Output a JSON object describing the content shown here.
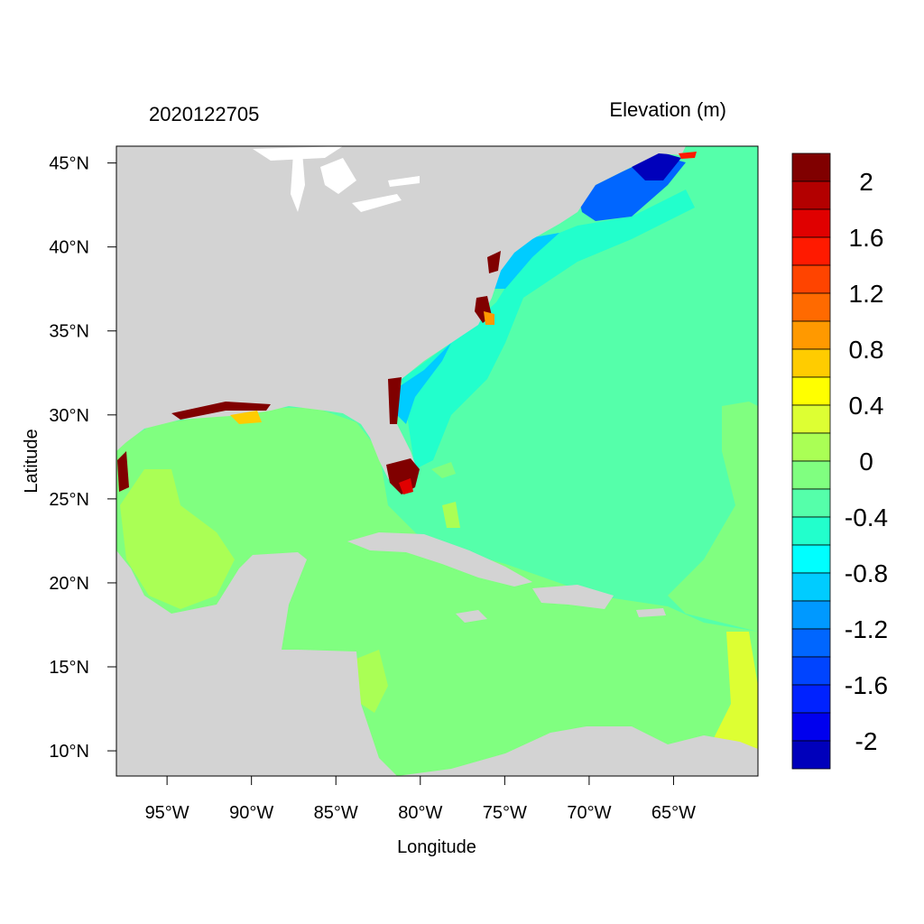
{
  "header": {
    "timestamp": "2020122705",
    "variable_title": "Elevation (m)"
  },
  "axes": {
    "xlabel": "Longitude",
    "ylabel": "Latitude",
    "lon_range": [
      -98,
      -60
    ],
    "lat_range": [
      8.5,
      46
    ],
    "x_ticks": [
      {
        "value": -95,
        "label": "95°W"
      },
      {
        "value": -90,
        "label": "90°W"
      },
      {
        "value": -85,
        "label": "85°W"
      },
      {
        "value": -80,
        "label": "80°W"
      },
      {
        "value": -75,
        "label": "75°W"
      },
      {
        "value": -70,
        "label": "70°W"
      },
      {
        "value": -65,
        "label": "65°W"
      }
    ],
    "y_ticks": [
      {
        "value": 45,
        "label": "45°N"
      },
      {
        "value": 40,
        "label": "40°N"
      },
      {
        "value": 35,
        "label": "35°N"
      },
      {
        "value": 30,
        "label": "30°N"
      },
      {
        "value": 25,
        "label": "25°N"
      },
      {
        "value": 20,
        "label": "20°N"
      },
      {
        "value": 15,
        "label": "15°N"
      },
      {
        "value": 10,
        "label": "10°N"
      }
    ]
  },
  "colorbar": {
    "levels_top_to_bottom": [
      {
        "color": "#800000"
      },
      {
        "color": "#b30000"
      },
      {
        "color": "#e00000"
      },
      {
        "color": "#ff1a00"
      },
      {
        "color": "#ff4400"
      },
      {
        "color": "#ff6a00"
      },
      {
        "color": "#ff9900"
      },
      {
        "color": "#ffcc00"
      },
      {
        "color": "#ffff00"
      },
      {
        "color": "#ddff33"
      },
      {
        "color": "#aaff55"
      },
      {
        "color": "#80ff80"
      },
      {
        "color": "#55ffaa"
      },
      {
        "color": "#22ffcc"
      },
      {
        "color": "#00ffff"
      },
      {
        "color": "#00ccff"
      },
      {
        "color": "#0099ff"
      },
      {
        "color": "#0066ff"
      },
      {
        "color": "#0044ff"
      },
      {
        "color": "#0022ff"
      },
      {
        "color": "#0000ee"
      },
      {
        "color": "#0000bb"
      }
    ],
    "labels": [
      {
        "text": "2",
        "after_box": 1
      },
      {
        "text": "1.6",
        "after_box": 3
      },
      {
        "text": "1.2",
        "after_box": 5
      },
      {
        "text": "0.8",
        "after_box": 7
      },
      {
        "text": "0.4",
        "after_box": 9
      },
      {
        "text": "0",
        "after_box": 11
      },
      {
        "text": "-0.4",
        "after_box": 13
      },
      {
        "text": "-0.8",
        "after_box": 15
      },
      {
        "text": "-1.2",
        "after_box": 17
      },
      {
        "text": "-1.6",
        "after_box": 19
      },
      {
        "text": "-2",
        "after_box": 21
      }
    ]
  },
  "map_colors": {
    "land": "#d3d3d3",
    "gulf_caribbean": "#80ff80",
    "atlantic": "#55ffaa",
    "shelf": "#22ffcc",
    "shallow_positive": "#aaff55",
    "high_positive": "#800000"
  }
}
